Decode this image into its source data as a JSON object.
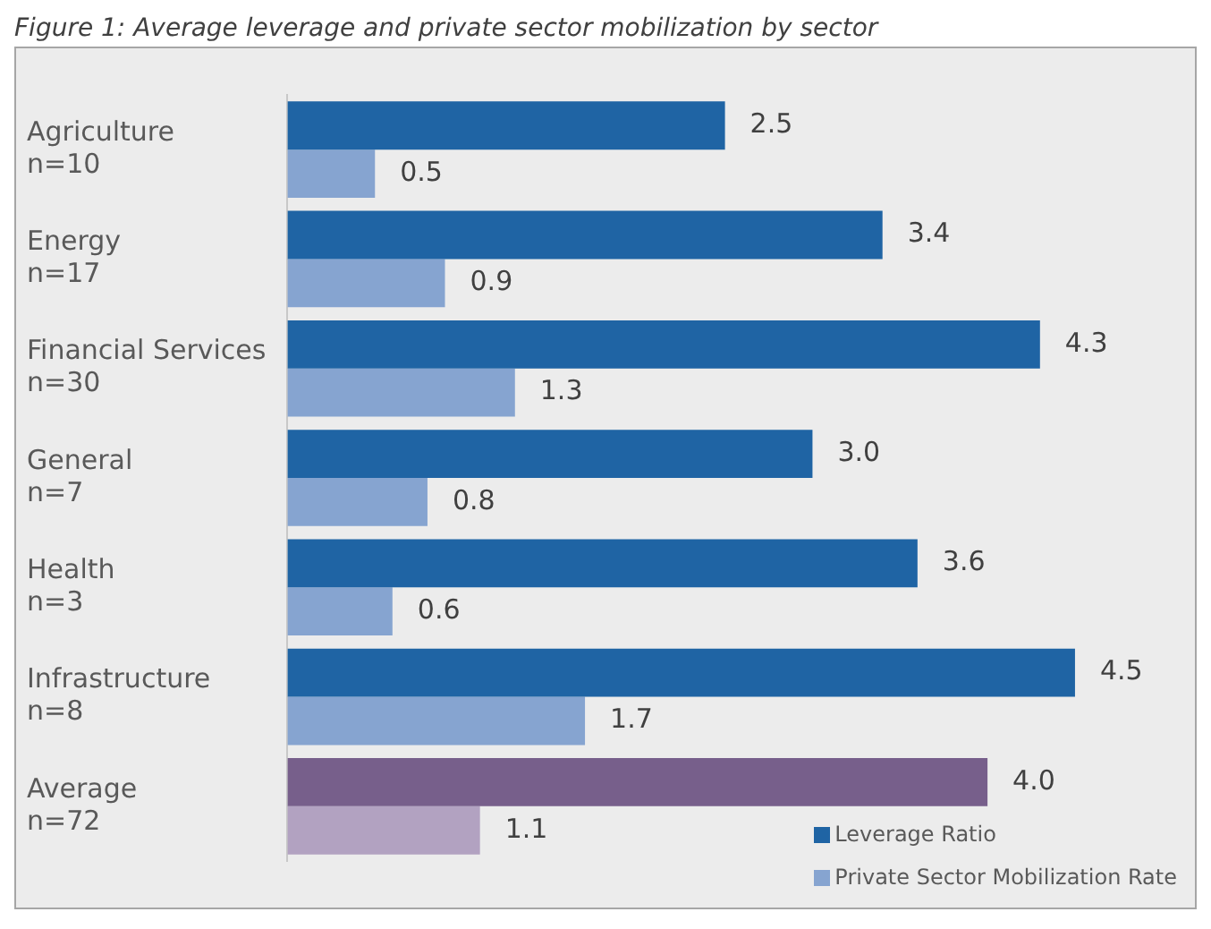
{
  "chart_data": {
    "type": "bar",
    "orientation": "horizontal",
    "title": "Figure 1: Average leverage and private sector mobilization by sector",
    "categories": [
      "Agriculture\nn=10",
      "Energy\nn=17",
      "Financial Services\nn=30",
      "General\nn=7",
      "Health\nn=3",
      "Infrastructure\nn=8",
      "Average\nn=72"
    ],
    "series": [
      {
        "name": "Leverage Ratio",
        "color": "#1f64a4",
        "colors": [
          "#1f64a4",
          "#1f64a4",
          "#1f64a4",
          "#1f64a4",
          "#1f64a4",
          "#1f64a4",
          "#775f8b"
        ],
        "values": [
          2.5,
          3.4,
          4.3,
          3.0,
          3.6,
          4.5,
          4.0
        ],
        "value_labels": [
          "2.5",
          "3.4",
          "4.3",
          "3.0",
          "3.6",
          "4.5",
          "4.0"
        ]
      },
      {
        "name": "Private Sector Mobilization Rate",
        "color": "#86a4d0",
        "colors": [
          "#86a4d0",
          "#86a4d0",
          "#86a4d0",
          "#86a4d0",
          "#86a4d0",
          "#86a4d0",
          "#b2a2c1"
        ],
        "values": [
          0.5,
          0.9,
          1.3,
          0.8,
          0.6,
          1.7,
          1.1
        ],
        "value_labels": [
          "0.5",
          "0.9",
          "1.3",
          "0.8",
          "0.6",
          "1.7",
          "1.1"
        ]
      }
    ],
    "legend": "bottom right",
    "grid": false
  }
}
